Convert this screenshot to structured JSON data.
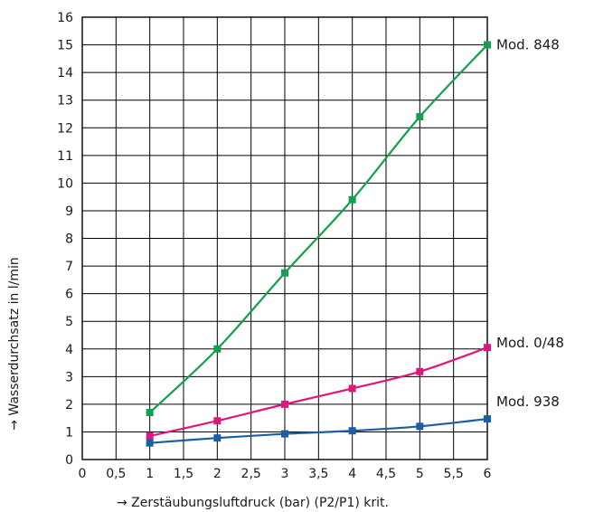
{
  "chart_data": {
    "type": "line",
    "title": "",
    "xlabel": "→ Zerstäubungsluftdruck (bar) (P2/P1) krit.",
    "ylabel": "→ Wasserdurchsatz in l/min",
    "xlim": [
      0,
      6
    ],
    "ylim": [
      0,
      16
    ],
    "x_ticks": [
      "0",
      "0,5",
      "1",
      "1,5",
      "2",
      "2,5",
      "3",
      "3,5",
      "4",
      "4,5",
      "5",
      "5,5",
      "6"
    ],
    "y_ticks": [
      "0",
      "1",
      "2",
      "3",
      "4",
      "5",
      "6",
      "7",
      "8",
      "9",
      "10",
      "11",
      "12",
      "13",
      "14",
      "15",
      "16"
    ],
    "grid": true,
    "series": [
      {
        "name": "Mod. 848",
        "color": "#12a14b",
        "marker": "square",
        "points": [
          [
            1,
            1.7
          ],
          [
            2,
            4.0
          ],
          [
            3,
            6.75
          ],
          [
            4,
            9.4
          ],
          [
            5,
            12.4
          ],
          [
            6,
            15.0
          ]
        ]
      },
      {
        "name": "Mod. 0/48",
        "color": "#e0157f",
        "marker": "square",
        "points": [
          [
            1,
            0.85
          ],
          [
            2,
            1.4
          ],
          [
            3,
            2.0
          ],
          [
            4,
            2.57
          ],
          [
            5,
            3.18
          ],
          [
            6,
            4.05
          ]
        ]
      },
      {
        "name": "Mod. 938",
        "color": "#1a5fa6",
        "marker": "square",
        "points": [
          [
            1,
            0.6
          ],
          [
            2,
            0.78
          ],
          [
            3,
            0.93
          ],
          [
            4,
            1.04
          ],
          [
            5,
            1.2
          ],
          [
            6,
            1.47
          ]
        ]
      }
    ]
  }
}
